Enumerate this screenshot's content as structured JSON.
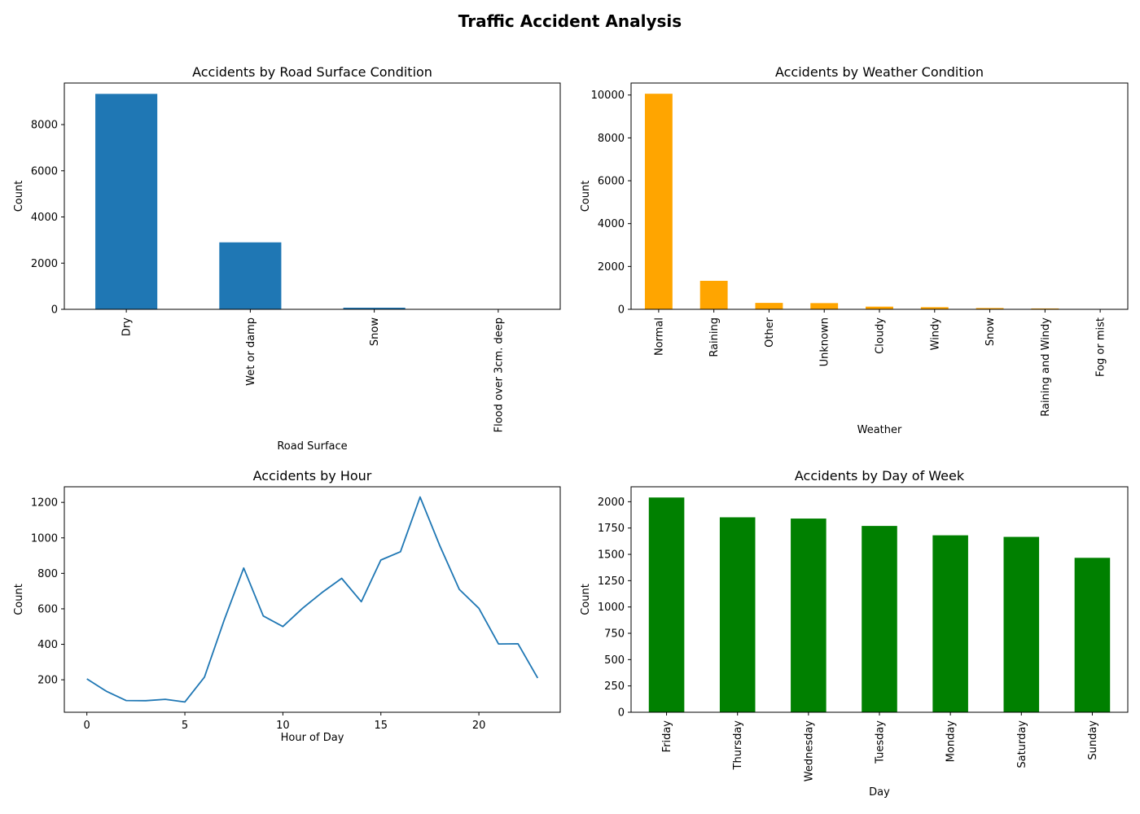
{
  "figure": {
    "title": "Traffic Accident Analysis"
  },
  "chart_data": [
    {
      "type": "bar",
      "title": "Accidents by Road Surface Condition",
      "xlabel": "Road Surface",
      "ylabel": "Count",
      "categories": [
        "Dry",
        "Wet or damp",
        "Snow",
        "Flood over 3cm. deep"
      ],
      "values": [
        9330,
        2900,
        70,
        5
      ],
      "ylim": [
        0,
        9800
      ],
      "yticks": [
        0,
        2000,
        4000,
        6000,
        8000
      ],
      "color": "#1f77b4",
      "tick_rotation": 90,
      "grid": false
    },
    {
      "type": "bar",
      "title": "Accidents by Weather Condition",
      "xlabel": "Weather",
      "ylabel": "Count",
      "categories": [
        "Normal",
        "Raining",
        "Other",
        "Unknown",
        "Cloudy",
        "Windy",
        "Snow",
        "Raining and Windy",
        "Fog or mist"
      ],
      "values": [
        10060,
        1330,
        300,
        290,
        125,
        100,
        60,
        40,
        10
      ],
      "ylim": [
        0,
        10560
      ],
      "yticks": [
        0,
        2000,
        4000,
        6000,
        8000,
        10000
      ],
      "color": "#ffa500",
      "tick_rotation": 90,
      "grid": false
    },
    {
      "type": "line",
      "title": "Accidents by Hour",
      "xlabel": "Hour of Day",
      "ylabel": "Count",
      "x": [
        0,
        1,
        2,
        3,
        4,
        5,
        6,
        7,
        8,
        9,
        10,
        11,
        12,
        13,
        14,
        15,
        16,
        17,
        18,
        19,
        20,
        21,
        22,
        23
      ],
      "values": [
        205,
        135,
        83,
        82,
        90,
        75,
        215,
        535,
        830,
        560,
        500,
        603,
        692,
        772,
        640,
        875,
        922,
        1230,
        957,
        710,
        603,
        402,
        403,
        210
      ],
      "xlim": [
        -1.15,
        24.15
      ],
      "ylim": [
        17,
        1288
      ],
      "xticks": [
        0,
        5,
        10,
        15,
        20
      ],
      "yticks": [
        200,
        400,
        600,
        800,
        1000,
        1200
      ],
      "color": "#1f77b4",
      "grid": false
    },
    {
      "type": "bar",
      "title": "Accidents by Day of Week",
      "xlabel": "Day",
      "ylabel": "Count",
      "categories": [
        "Friday",
        "Thursday",
        "Wednesday",
        "Tuesday",
        "Monday",
        "Saturday",
        "Sunday"
      ],
      "values": [
        2040,
        1852,
        1840,
        1770,
        1681,
        1666,
        1467
      ],
      "ylim": [
        0,
        2142
      ],
      "yticks": [
        0,
        250,
        500,
        750,
        1000,
        1250,
        1500,
        1750,
        2000
      ],
      "color": "#008000",
      "tick_rotation": 90,
      "grid": false
    }
  ]
}
